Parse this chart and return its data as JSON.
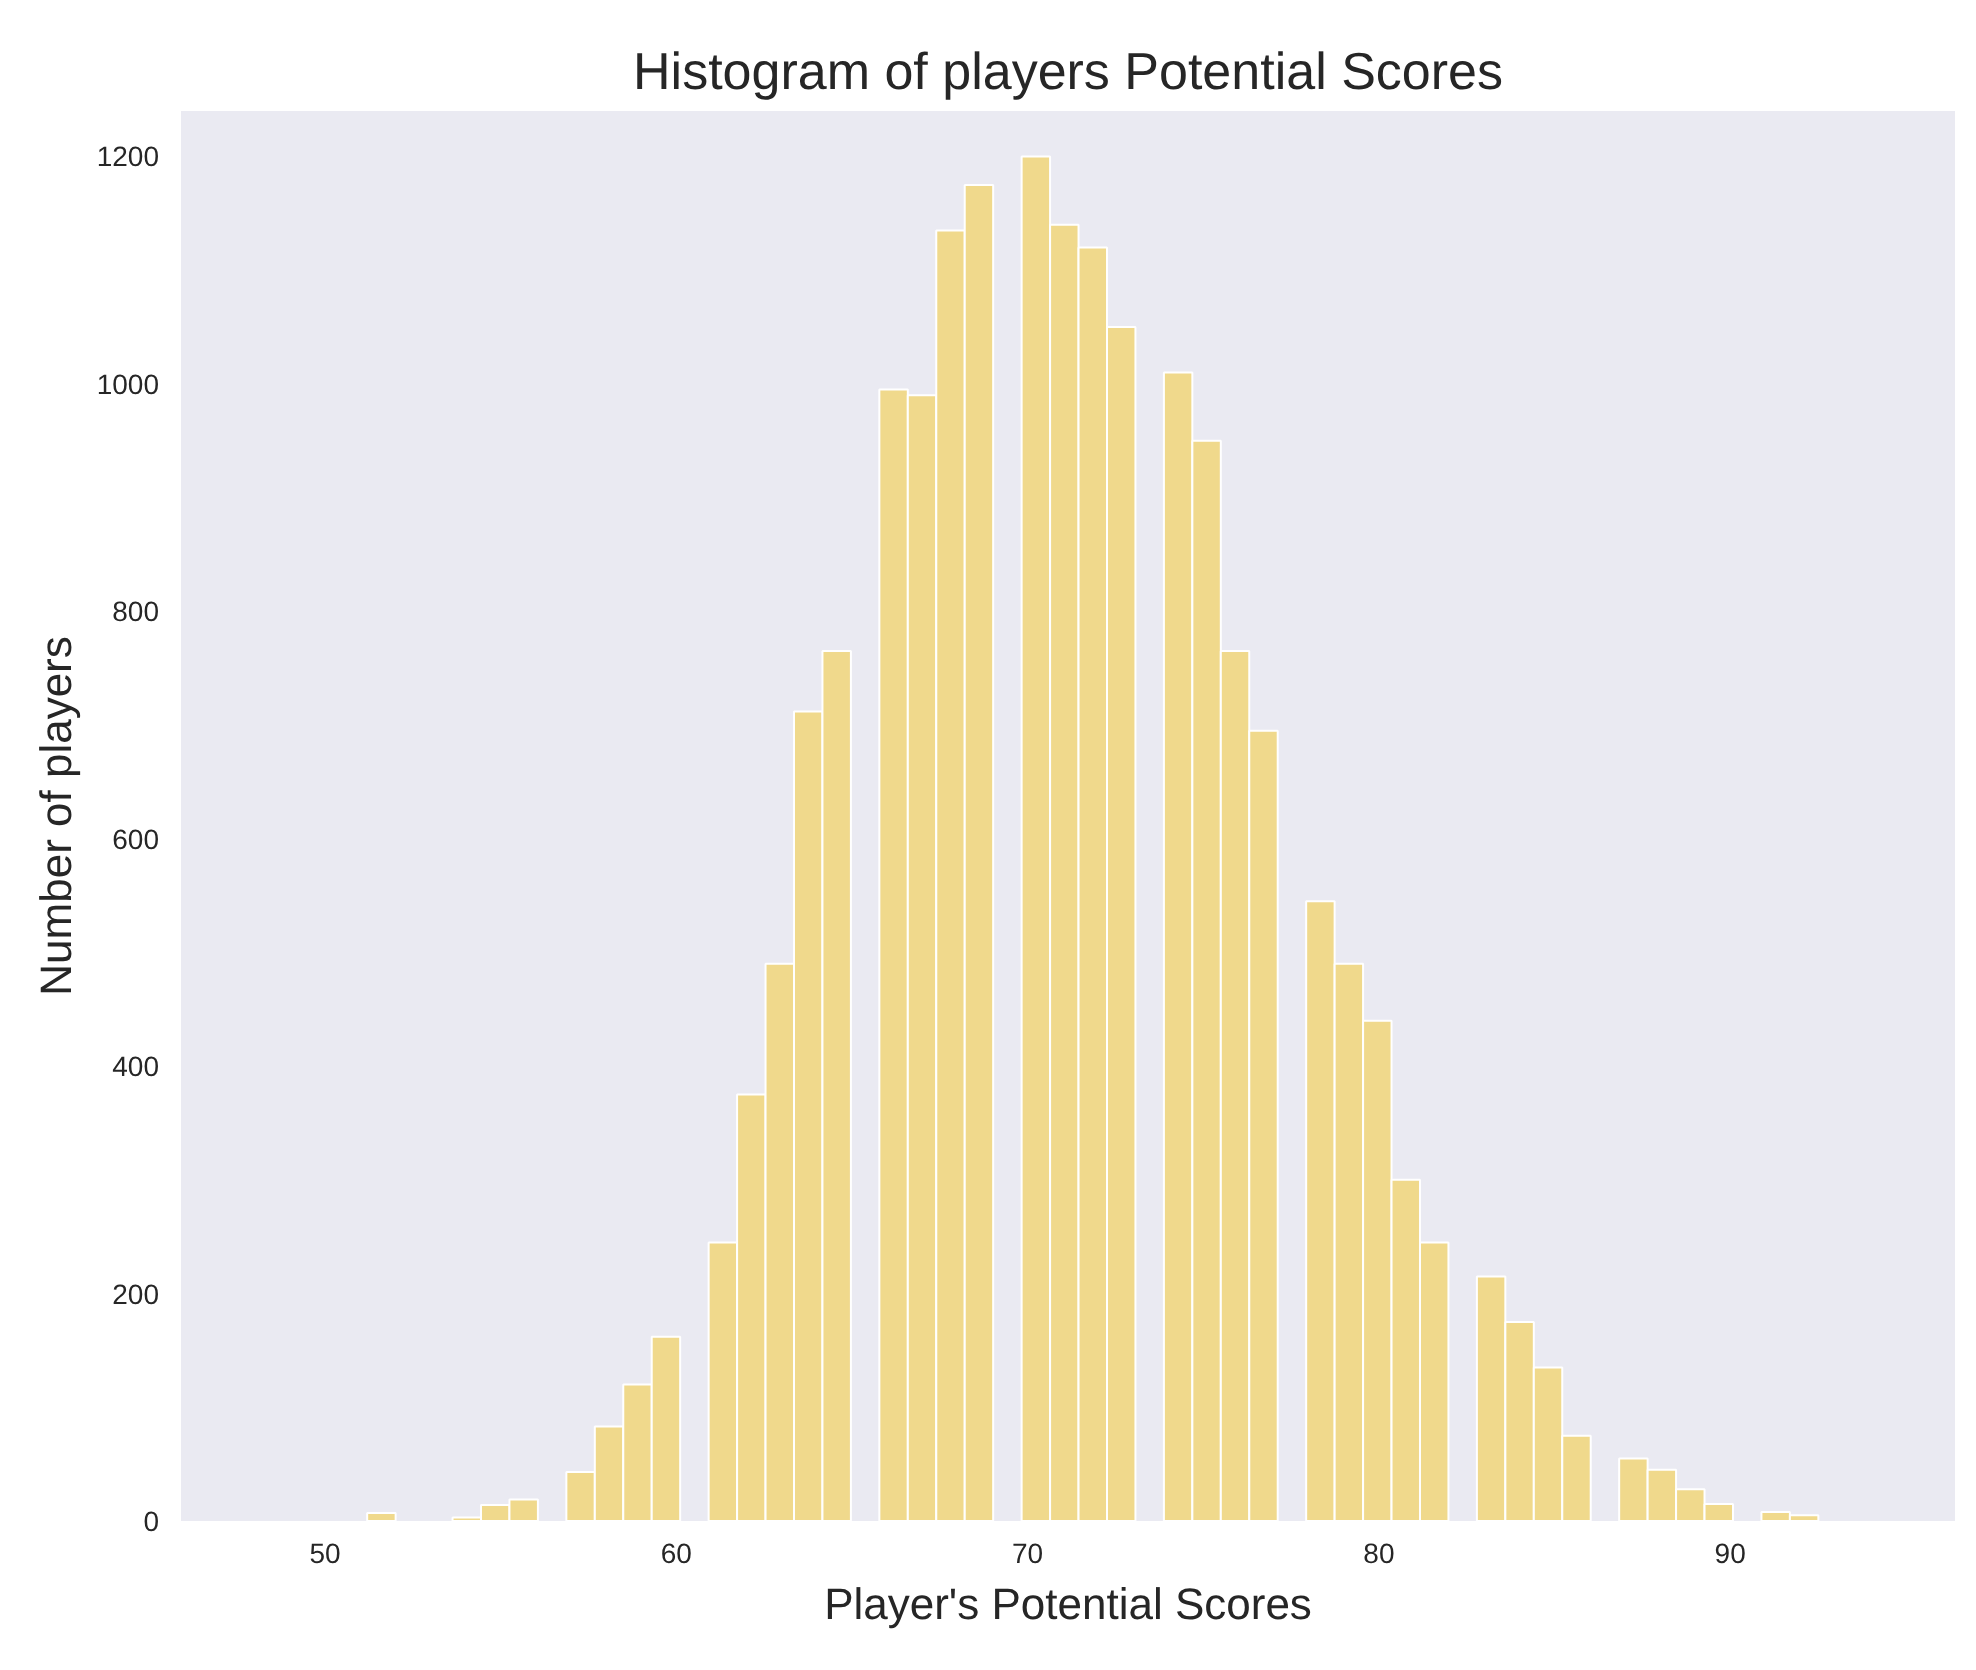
{
  "chart_data": {
    "type": "histogram",
    "title": "Histogram of players Potential Scores",
    "xlabel": "Player's Potential Scores",
    "ylabel": "Number of players",
    "bins": [
      51.2,
      52.01,
      52.82,
      53.63,
      54.44,
      55.25,
      56.06,
      56.87,
      57.68,
      58.49,
      59.3,
      60.11,
      60.92,
      61.73,
      62.54,
      63.35,
      64.16,
      64.97,
      65.78,
      66.59,
      67.4,
      68.21,
      69.02,
      69.83,
      70.64,
      71.45,
      72.26,
      73.07,
      73.88,
      74.69,
      75.5,
      76.31,
      77.12,
      77.93,
      78.74,
      79.55,
      80.36,
      81.17,
      81.98,
      82.79,
      83.6,
      84.41,
      85.22,
      86.03,
      86.84,
      87.65,
      88.46,
      89.27,
      90.08,
      90.89,
      91.7,
      92.51
    ],
    "values": [
      7,
      0,
      null,
      3,
      14,
      19,
      0,
      43,
      83,
      120,
      162,
      0,
      245,
      375,
      490,
      712,
      765,
      0,
      995,
      990,
      1135,
      1175,
      0,
      1200,
      1140,
      1120,
      1050,
      0,
      1010,
      950,
      765,
      695,
      0,
      545,
      490,
      440,
      300,
      245,
      0,
      215,
      175,
      135,
      75,
      0,
      55,
      45,
      28,
      15,
      0,
      8,
      5
    ],
    "color": "#f0d98c",
    "xlim": [
      45.9,
      96.4
    ],
    "ylim": [
      0,
      1240
    ],
    "xticks": [
      50,
      60,
      70,
      80,
      90
    ],
    "yticks": [
      0,
      200,
      400,
      600,
      800,
      1000,
      1200
    ],
    "grid": false
  }
}
